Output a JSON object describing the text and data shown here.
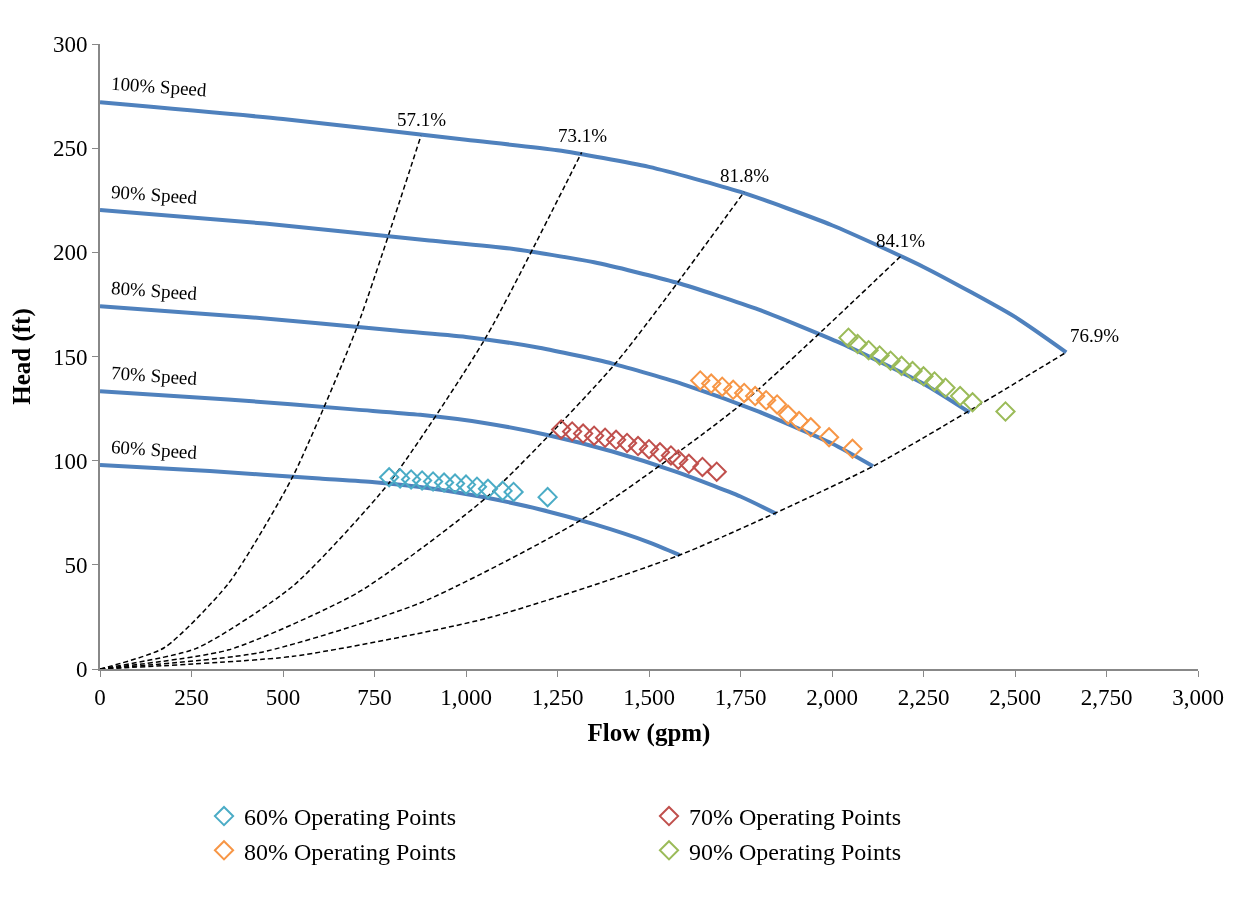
{
  "chart_data": {
    "type": "line",
    "xlabel": "Flow (gpm)",
    "ylabel": "Head (ft)",
    "xlim": [
      0,
      3000
    ],
    "ylim": [
      0,
      300
    ],
    "xticks": [
      0,
      250,
      500,
      750,
      {
        "value": 1000,
        "label": "1,000"
      },
      {
        "value": 1250,
        "label": "1,250"
      },
      {
        "value": 1500,
        "label": "1,500"
      },
      {
        "value": 1750,
        "label": "1,750"
      },
      {
        "value": 2000,
        "label": "2,000"
      },
      {
        "value": 2250,
        "label": "2,250"
      },
      {
        "value": 2500,
        "label": "2,500"
      },
      {
        "value": 2750,
        "label": "2,750"
      },
      {
        "value": 3000,
        "label": "3,000"
      }
    ],
    "yticks": [
      0,
      50,
      100,
      150,
      200,
      250,
      300
    ],
    "legend": "bottom",
    "series": [
      {
        "color": "#4f81bd",
        "line_style": "solid",
        "marker": "none",
        "x": [
          0,
          500,
          1000,
          1250,
          1500,
          1750,
          2000,
          2250,
          2500,
          2640
        ],
        "values": [
          272,
          264,
          254,
          249,
          241,
          229,
          213,
          193,
          169,
          152
        ]
      },
      {
        "color": "#4f81bd",
        "line_style": "solid",
        "marker": "none",
        "x": [
          0,
          450,
          900,
          1125,
          1350,
          1575,
          1800,
          2025,
          2250,
          2376
        ],
        "values": [
          220.3,
          213.8,
          205.7,
          201.7,
          195.2,
          185.5,
          172.5,
          156.3,
          136.9,
          123.1
        ]
      },
      {
        "color": "#4f81bd",
        "line_style": "solid",
        "marker": "none",
        "x": [
          0,
          400,
          800,
          1000,
          1200,
          1400,
          1600,
          1800,
          2000,
          2112
        ],
        "values": [
          174.1,
          169,
          162.6,
          159.4,
          154.2,
          146.6,
          136.3,
          123.5,
          108.2,
          97.3
        ]
      },
      {
        "color": "#4f81bd",
        "line_style": "solid",
        "marker": "none",
        "x": [
          0,
          350,
          700,
          875,
          1050,
          1225,
          1400,
          1575,
          1750,
          1848
        ],
        "values": [
          133.3,
          129.4,
          124.5,
          122,
          118.1,
          112.2,
          104.4,
          94.6,
          82.8,
          74.5
        ]
      },
      {
        "color": "#4f81bd",
        "line_style": "solid",
        "marker": "none",
        "x": [
          0,
          300,
          600,
          750,
          900,
          1050,
          1200,
          1350,
          1500,
          1584
        ],
        "values": [
          97.9,
          95,
          91.4,
          89.6,
          86.8,
          82.4,
          76.7,
          69.5,
          60.8,
          54.7
        ]
      },
      {
        "color": "#000000",
        "line_style": "dashed",
        "marker": "none",
        "x": [
          0,
          175.4,
          350.8,
          526.2,
          701.6,
          877
        ],
        "values": [
          0,
          10.2,
          41,
          92.2,
          163.8,
          256
        ]
      },
      {
        "color": "#000000",
        "line_style": "dashed",
        "marker": "none",
        "x": [
          0,
          263.2,
          526.4,
          789.6,
          1052.8,
          1316
        ],
        "values": [
          0,
          9.9,
          39.7,
          89.3,
          158.7,
          248
        ]
      },
      {
        "color": "#000000",
        "line_style": "dashed",
        "marker": "none",
        "x": [
          0,
          352,
          704,
          1056,
          1408,
          1760
        ],
        "values": [
          0,
          9.2,
          36.6,
          82.4,
          146.6,
          229
        ]
      },
      {
        "color": "#000000",
        "line_style": "dashed",
        "marker": "none",
        "x": [
          0,
          437.4,
          874.8,
          1312.2,
          1749.6,
          2187
        ],
        "values": [
          0,
          7.9,
          31.7,
          71.3,
          126.7,
          198
        ]
      },
      {
        "color": "#000000",
        "line_style": "dashed",
        "marker": "none",
        "x": [
          0,
          528,
          1056,
          1584,
          2112,
          2640
        ],
        "values": [
          0,
          6.1,
          24.3,
          54.7,
          97.3,
          152
        ]
      },
      {
        "type": "scatter",
        "name": "60% Operating Points",
        "color": "#4bacc6",
        "marker": "diamond",
        "x": [
          790,
          820,
          850,
          880,
          910,
          940,
          970,
          1000,
          1030,
          1060,
          1100,
          1130,
          1223
        ],
        "values": [
          92,
          91.5,
          91,
          90.5,
          90,
          89.5,
          89,
          88.5,
          87.5,
          86.5,
          85.5,
          85,
          82.5
        ]
      },
      {
        "type": "scatter",
        "name": "70% Operating Points",
        "color": "#c0504d",
        "marker": "diamond",
        "x": [
          1260,
          1290,
          1320,
          1350,
          1380,
          1410,
          1440,
          1470,
          1500,
          1530,
          1560,
          1580,
          1609,
          1646,
          1685
        ],
        "values": [
          115,
          114,
          113,
          112,
          111,
          110,
          108.5,
          107,
          105.5,
          104,
          102.5,
          100.5,
          98.5,
          97,
          94.7
        ]
      },
      {
        "type": "scatter",
        "name": "80% Operating Points",
        "color": "#f79646",
        "marker": "diamond",
        "x": [
          1640,
          1670,
          1700,
          1730,
          1760,
          1790,
          1820,
          1850,
          1880,
          1910,
          1942,
          1992,
          2056
        ],
        "values": [
          138.5,
          137,
          135.5,
          134,
          132.5,
          131,
          129,
          127,
          122,
          119,
          116,
          111.2,
          105.7
        ]
      },
      {
        "type": "scatter",
        "name": "90% Operating Points",
        "color": "#9bbb59",
        "marker": "diamond",
        "x": [
          2045,
          2070,
          2100,
          2130,
          2160,
          2190,
          2220,
          2250,
          2280,
          2310,
          2350,
          2384,
          2474
        ],
        "values": [
          159,
          156,
          153,
          150.5,
          148,
          145.5,
          143,
          140.5,
          138,
          135,
          131,
          128,
          123.6
        ]
      }
    ],
    "annotations": [
      {
        "text": "100% Speed",
        "x": 0,
        "y": 272
      },
      {
        "text": "90% Speed",
        "x": 0,
        "y": 220.3
      },
      {
        "text": "80% Speed",
        "x": 0,
        "y": 174.1
      },
      {
        "text": "70% Speed",
        "x": 0,
        "y": 133.3
      },
      {
        "text": "60% Speed",
        "x": 0,
        "y": 97.9
      },
      {
        "text": "57.1%",
        "x": 877,
        "y": 256
      },
      {
        "text": "73.1%",
        "x": 1316,
        "y": 248
      },
      {
        "text": "81.8%",
        "x": 1760,
        "y": 229
      },
      {
        "text": "84.1%",
        "x": 2187,
        "y": 198
      },
      {
        "text": "76.9%",
        "x": 2640,
        "y": 152
      }
    ]
  }
}
